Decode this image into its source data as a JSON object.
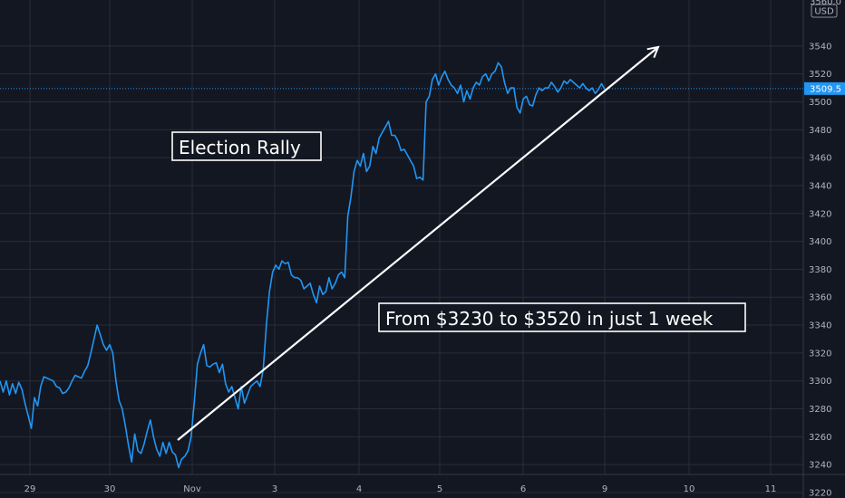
{
  "chart_data": {
    "type": "line",
    "currency_label": "USD",
    "x_tick_labels": [
      "29",
      "30",
      "Nov",
      "3",
      "4",
      "5",
      "6",
      "9",
      "10",
      "11"
    ],
    "y_ticks": [
      3220,
      3240,
      3260,
      3280,
      3300,
      3320,
      3340,
      3360,
      3380,
      3400,
      3420,
      3440,
      3460,
      3480,
      3500,
      3520,
      3540
    ],
    "top_partial_label": "3560.0",
    "ylim": [
      3212,
      3562
    ],
    "grid": true,
    "last_price": 3509.5,
    "last_price_label": "3509.5",
    "colors": {
      "background": "#131722",
      "line": "#2196f3",
      "grid": "#2a2e39",
      "text": "#b2b5be",
      "annotation": "#ffffff"
    },
    "series": [
      {
        "values": [
          3300,
          3292,
          3300,
          3290,
          3298,
          3291,
          3299,
          3294,
          3284,
          3275,
          3266,
          3288,
          3282,
          3296,
          3303,
          3302,
          3301,
          3300,
          3296,
          3295,
          3291,
          3292,
          3295,
          3300,
          3304,
          3303,
          3302,
          3307,
          3311,
          3320,
          3330,
          3340,
          3333,
          3326,
          3322,
          3326,
          3320,
          3300,
          3286,
          3280,
          3268,
          3254,
          3242,
          3262,
          3250,
          3248,
          3255,
          3264,
          3272,
          3260,
          3251,
          3246,
          3256,
          3248,
          3256,
          3249,
          3247,
          3238,
          3244,
          3246,
          3250,
          3260,
          3285,
          3312,
          3320,
          3326,
          3311,
          3310,
          3312,
          3313,
          3306,
          3312,
          3298,
          3292,
          3296,
          3288,
          3280,
          3296,
          3284,
          3290,
          3296,
          3298,
          3300,
          3296,
          3308,
          3340,
          3364,
          3378,
          3383,
          3380,
          3386,
          3384,
          3385,
          3376,
          3374,
          3374,
          3372,
          3366,
          3368,
          3370,
          3362,
          3356,
          3368,
          3362,
          3364,
          3374,
          3366,
          3370,
          3376,
          3378,
          3374,
          3418,
          3432,
          3450,
          3458,
          3454,
          3463,
          3450,
          3454,
          3468,
          3463,
          3474,
          3478,
          3482,
          3486,
          3476,
          3476,
          3472,
          3465,
          3466,
          3462,
          3458,
          3454,
          3445,
          3446,
          3444,
          3500,
          3504,
          3516,
          3520,
          3512,
          3518,
          3522,
          3516,
          3512,
          3510,
          3506,
          3512,
          3500,
          3508,
          3502,
          3510,
          3514,
          3512,
          3518,
          3520,
          3515,
          3520,
          3522,
          3528,
          3525,
          3514,
          3506,
          3510,
          3510,
          3496,
          3492,
          3502,
          3504,
          3498,
          3497,
          3505,
          3510,
          3508,
          3510,
          3510,
          3514,
          3511,
          3507,
          3510,
          3515,
          3513,
          3516,
          3514,
          3512,
          3510,
          3513,
          3510,
          3508,
          3510,
          3506,
          3509,
          3513,
          3509
        ]
      }
    ],
    "annotations": [
      {
        "text": "Election Rally"
      },
      {
        "text": "From $3230 to $3520 in just 1 week"
      }
    ]
  }
}
